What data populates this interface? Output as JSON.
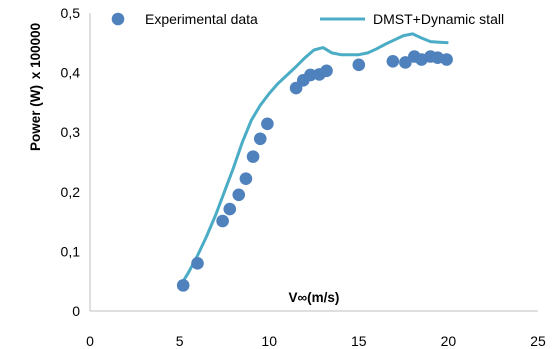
{
  "chart_data": {
    "type": "scatter",
    "xlabel": "V∞(m/s)",
    "ylabel": "Power (W)",
    "ylabel_multiplier": "x 100000",
    "xlim": [
      0,
      25
    ],
    "ylim": [
      0,
      0.5
    ],
    "x_ticks": [
      "0",
      "5",
      "10",
      "15",
      "20",
      "25"
    ],
    "y_ticks": [
      "0",
      "0,1",
      "0,2",
      "0,3",
      "0,4",
      "0,5"
    ],
    "grid": false,
    "legend_position": "top",
    "series": [
      {
        "name": "Experimental data",
        "kind": "scatter",
        "color": "#4F81BD",
        "x": [
          5.2,
          6.0,
          7.4,
          7.8,
          8.3,
          8.7,
          9.1,
          9.5,
          9.9,
          11.5,
          11.9,
          12.3,
          12.8,
          13.2,
          15.0,
          16.9,
          17.6,
          18.1,
          18.5,
          19.0,
          19.4,
          19.9
        ],
        "y": [
          0.043,
          0.08,
          0.151,
          0.171,
          0.195,
          0.222,
          0.259,
          0.289,
          0.314,
          0.374,
          0.387,
          0.396,
          0.397,
          0.403,
          0.413,
          0.419,
          0.417,
          0.427,
          0.422,
          0.427,
          0.425,
          0.422
        ]
      },
      {
        "name": "DMST+Dynamic stall",
        "kind": "line",
        "color": "#4BACC6",
        "x": [
          5.0,
          5.5,
          6.0,
          6.5,
          7.0,
          7.5,
          8.0,
          8.5,
          9.0,
          9.5,
          10.0,
          10.5,
          11.0,
          11.5,
          12.0,
          12.5,
          13.0,
          13.5,
          14.0,
          14.5,
          15.0,
          15.5,
          16.0,
          16.5,
          17.0,
          17.5,
          18.0,
          18.5,
          19.0,
          19.5,
          20.0
        ],
        "y": [
          0.04,
          0.065,
          0.093,
          0.125,
          0.16,
          0.2,
          0.24,
          0.283,
          0.32,
          0.345,
          0.365,
          0.382,
          0.396,
          0.41,
          0.425,
          0.438,
          0.442,
          0.433,
          0.43,
          0.43,
          0.43,
          0.433,
          0.44,
          0.448,
          0.455,
          0.462,
          0.465,
          0.458,
          0.452,
          0.451,
          0.45
        ]
      }
    ]
  }
}
